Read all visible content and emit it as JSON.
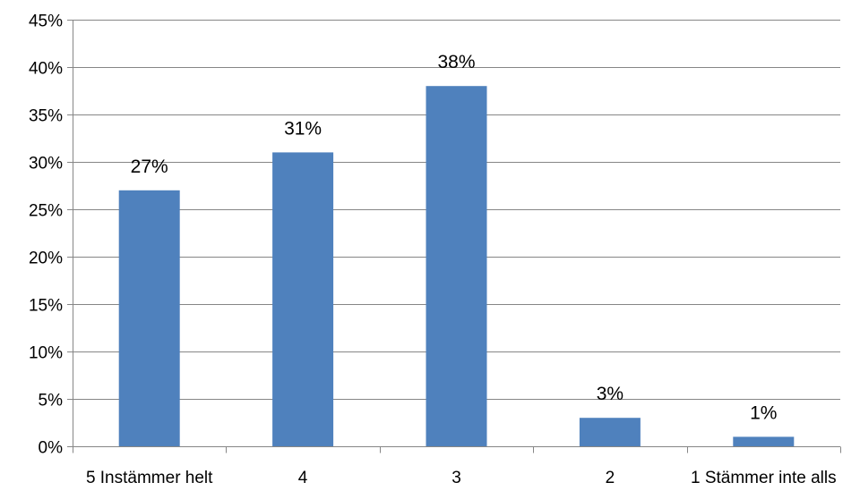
{
  "chart_data": {
    "type": "bar",
    "title": "",
    "xlabel": "",
    "ylabel": "",
    "categories": [
      "5 Instämmer helt",
      "4",
      "3",
      "2",
      "1 Stämmer inte alls"
    ],
    "values": [
      27,
      31,
      38,
      3,
      1
    ],
    "value_labels": [
      "27%",
      "31%",
      "38%",
      "3%",
      "1%"
    ],
    "ylim": [
      0,
      45
    ],
    "y_ticks": [
      0,
      5,
      10,
      15,
      20,
      25,
      30,
      35,
      40,
      45
    ],
    "y_tick_labels": [
      "0%",
      "5%",
      "10%",
      "15%",
      "20%",
      "25%",
      "30%",
      "35%",
      "40%",
      "45%"
    ],
    "grid": true,
    "legend": "none",
    "bar_color": "#4F81BD",
    "grid_color": "#868686"
  }
}
